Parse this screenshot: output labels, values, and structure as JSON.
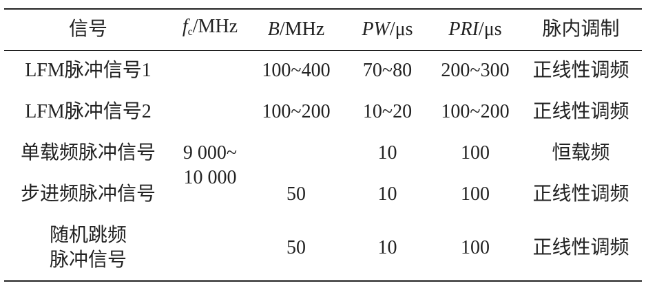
{
  "table": {
    "headers": [
      {
        "text": "信号"
      },
      {
        "italic": "f",
        "sub": "c",
        "text": "/MHz"
      },
      {
        "italic": "B",
        "text": "/MHz"
      },
      {
        "italic": "PW",
        "text": "/μs"
      },
      {
        "italic": "PRI",
        "text": "/μs"
      },
      {
        "text": "脉内调制"
      }
    ],
    "fc_merged": [
      "9 000~",
      "10 000"
    ],
    "rows": [
      [
        [
          "LFM脉冲信号1"
        ],
        "100~400",
        "70~80",
        "200~300",
        "正线性调频"
      ],
      [
        [
          "LFM脉冲信号2"
        ],
        "100~200",
        "10~20",
        "100~200",
        "正线性调频"
      ],
      [
        [
          "单载频脉冲信号"
        ],
        null,
        "10",
        "100",
        "恒载频"
      ],
      [
        [
          "步进频脉冲信号"
        ],
        "50",
        "10",
        "100",
        "正线性调频"
      ],
      [
        [
          "随机跳频",
          "脉冲信号"
        ],
        "50",
        "10",
        "100",
        "正线性调频"
      ]
    ]
  }
}
